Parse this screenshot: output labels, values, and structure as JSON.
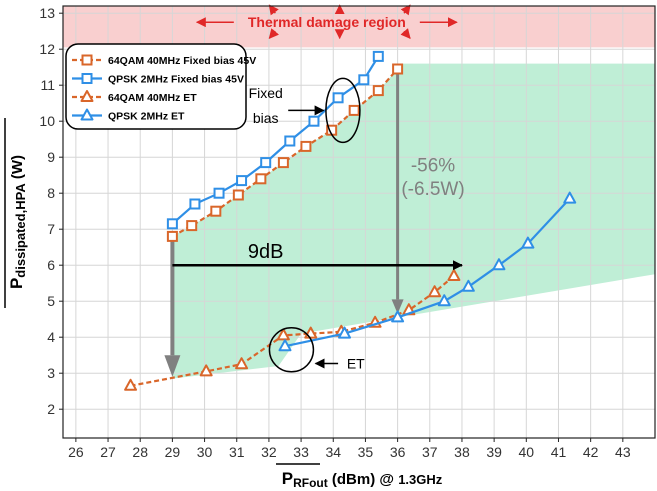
{
  "chart_data": {
    "type": "line",
    "xlabel": {
      "main": "P",
      "sub": "RFout",
      "rest": " (dBm) @ ",
      "freq": "1.3GHz"
    },
    "ylabel": {
      "main": "P",
      "sub": "dissipated,HPA",
      "rest": " (W)"
    },
    "xlim": [
      25.6,
      44
    ],
    "ylim": [
      1.2,
      13.2
    ],
    "xticks": [
      26,
      27,
      28,
      29,
      30,
      31,
      32,
      33,
      34,
      35,
      36,
      37,
      38,
      39,
      40,
      41,
      42,
      43
    ],
    "yticks": [
      2,
      3,
      4,
      5,
      6,
      7,
      8,
      9,
      10,
      11,
      12,
      13
    ],
    "grid": true,
    "legend_position": "top-left",
    "series": [
      {
        "name": "64QAM 40MHz Fixed bias 45V",
        "color": "#d9662a",
        "dash": true,
        "marker": "square",
        "x": [
          29.0,
          29.6,
          30.35,
          31.05,
          31.75,
          32.45,
          33.15,
          33.95,
          34.65,
          35.4,
          36.0
        ],
        "y": [
          6.8,
          7.1,
          7.5,
          7.95,
          8.4,
          8.85,
          9.3,
          9.75,
          10.3,
          10.85,
          11.45
        ]
      },
      {
        "name": "QPSK 2MHz Fixed bias 45V",
        "color": "#2f8fe6",
        "dash": false,
        "marker": "square",
        "x": [
          29.0,
          29.7,
          30.45,
          31.15,
          31.9,
          32.65,
          33.4,
          34.15,
          34.95,
          35.4
        ],
        "y": [
          7.15,
          7.7,
          8.0,
          8.35,
          8.85,
          9.45,
          10.0,
          10.65,
          11.15,
          11.8
        ]
      },
      {
        "name": "64QAM 40MHz ET",
        "color": "#d9662a",
        "dash": true,
        "marker": "triangle",
        "x": [
          27.7,
          30.05,
          31.15,
          32.45,
          33.3,
          34.25,
          35.3,
          36.35,
          37.15,
          37.75
        ],
        "y": [
          2.65,
          3.05,
          3.25,
          4.05,
          4.1,
          4.15,
          4.4,
          4.75,
          5.25,
          5.7
        ]
      },
      {
        "name": "QPSK 2MHz ET",
        "color": "#2f8fe6",
        "dash": false,
        "marker": "triangle",
        "x": [
          32.5,
          34.35,
          36.0,
          37.45,
          38.2,
          39.15,
          40.05,
          41.35
        ],
        "y": [
          3.75,
          4.1,
          4.55,
          5.0,
          5.4,
          6.0,
          6.6,
          7.85
        ]
      }
    ],
    "annotations": {
      "thermal": "Thermal damage region",
      "fixed_bias": "Fixed\nbias",
      "et": "ET",
      "gain": "9dB",
      "saving": "-56%\n(-6.5W)"
    }
  },
  "colors": {
    "thermal_fill": "#f9cfcf",
    "thermal_text": "#e02828",
    "green_fill": "#bfeed6",
    "grid": "#d6d6d6",
    "frame": "#222222",
    "gray_arrow": "#808080",
    "black": "#000000"
  }
}
